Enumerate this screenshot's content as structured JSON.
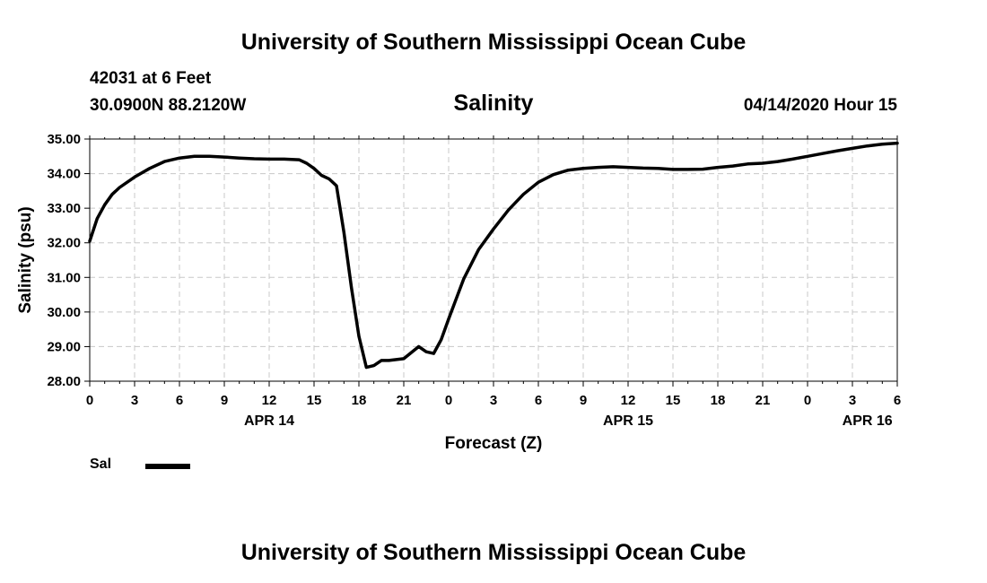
{
  "header": {
    "top_title": "University of Southern Mississippi Ocean Cube",
    "station": "42031 at 6 Feet",
    "coords": "30.0900N 88.2120W",
    "chart_title": "Salinity",
    "run_time": "04/14/2020 Hour 15"
  },
  "footer": {
    "bottom_title": "University of Southern Mississippi Ocean Cube"
  },
  "legend": {
    "entries": [
      {
        "label": "Sal",
        "color": "#000000"
      }
    ]
  },
  "chart_data": {
    "type": "line",
    "title": "Salinity",
    "xlabel": "Forecast (Z)",
    "ylabel": "Salinity (psu)",
    "xlim": [
      0,
      54
    ],
    "ylim": [
      28,
      35
    ],
    "grid": true,
    "x_ticks": [
      0,
      3,
      6,
      9,
      12,
      15,
      18,
      21,
      24,
      27,
      30,
      33,
      36,
      39,
      42,
      45,
      48,
      51,
      54
    ],
    "x_tick_labels": [
      "0",
      "3",
      "6",
      "9",
      "12",
      "15",
      "18",
      "21",
      "0",
      "3",
      "6",
      "9",
      "12",
      "15",
      "18",
      "21",
      "0",
      "3",
      "6"
    ],
    "date_labels": [
      {
        "x": 12,
        "label": "APR 14"
      },
      {
        "x": 36,
        "label": "APR 15"
      },
      {
        "x": 52,
        "label": "APR 16"
      }
    ],
    "y_ticks": [
      28,
      29,
      30,
      31,
      32,
      33,
      34,
      35
    ],
    "y_tick_labels": [
      "28.00",
      "29.00",
      "30.00",
      "31.00",
      "32.00",
      "33.00",
      "34.00",
      "35.00"
    ],
    "series": [
      {
        "name": "Sal",
        "x": [
          0,
          0.5,
          1,
          1.5,
          2,
          3,
          4,
          5,
          6,
          7,
          8,
          9,
          10,
          11,
          12,
          13,
          14,
          14.5,
          15,
          15.5,
          16,
          16.5,
          17,
          17.5,
          18,
          18.5,
          19,
          19.5,
          20,
          21,
          22,
          22.5,
          23,
          23.5,
          24,
          25,
          26,
          27,
          28,
          29,
          30,
          31,
          32,
          33,
          34,
          35,
          36,
          37,
          38,
          39,
          40,
          41,
          42,
          43,
          44,
          45,
          46,
          47,
          48,
          49,
          50,
          51,
          52,
          53,
          54
        ],
        "values": [
          32.05,
          32.7,
          33.1,
          33.4,
          33.6,
          33.9,
          34.15,
          34.35,
          34.45,
          34.5,
          34.5,
          34.48,
          34.45,
          34.43,
          34.42,
          34.42,
          34.4,
          34.3,
          34.15,
          33.95,
          33.85,
          33.65,
          32.3,
          30.7,
          29.3,
          28.4,
          28.45,
          28.6,
          28.6,
          28.65,
          29.0,
          28.85,
          28.8,
          29.2,
          29.8,
          30.95,
          31.8,
          32.4,
          32.95,
          33.4,
          33.75,
          33.97,
          34.1,
          34.15,
          34.18,
          34.2,
          34.18,
          34.16,
          34.15,
          34.12,
          34.12,
          34.13,
          34.18,
          34.22,
          34.28,
          34.3,
          34.35,
          34.42,
          34.5,
          34.58,
          34.66,
          34.73,
          34.8,
          34.85,
          34.88
        ]
      }
    ]
  }
}
